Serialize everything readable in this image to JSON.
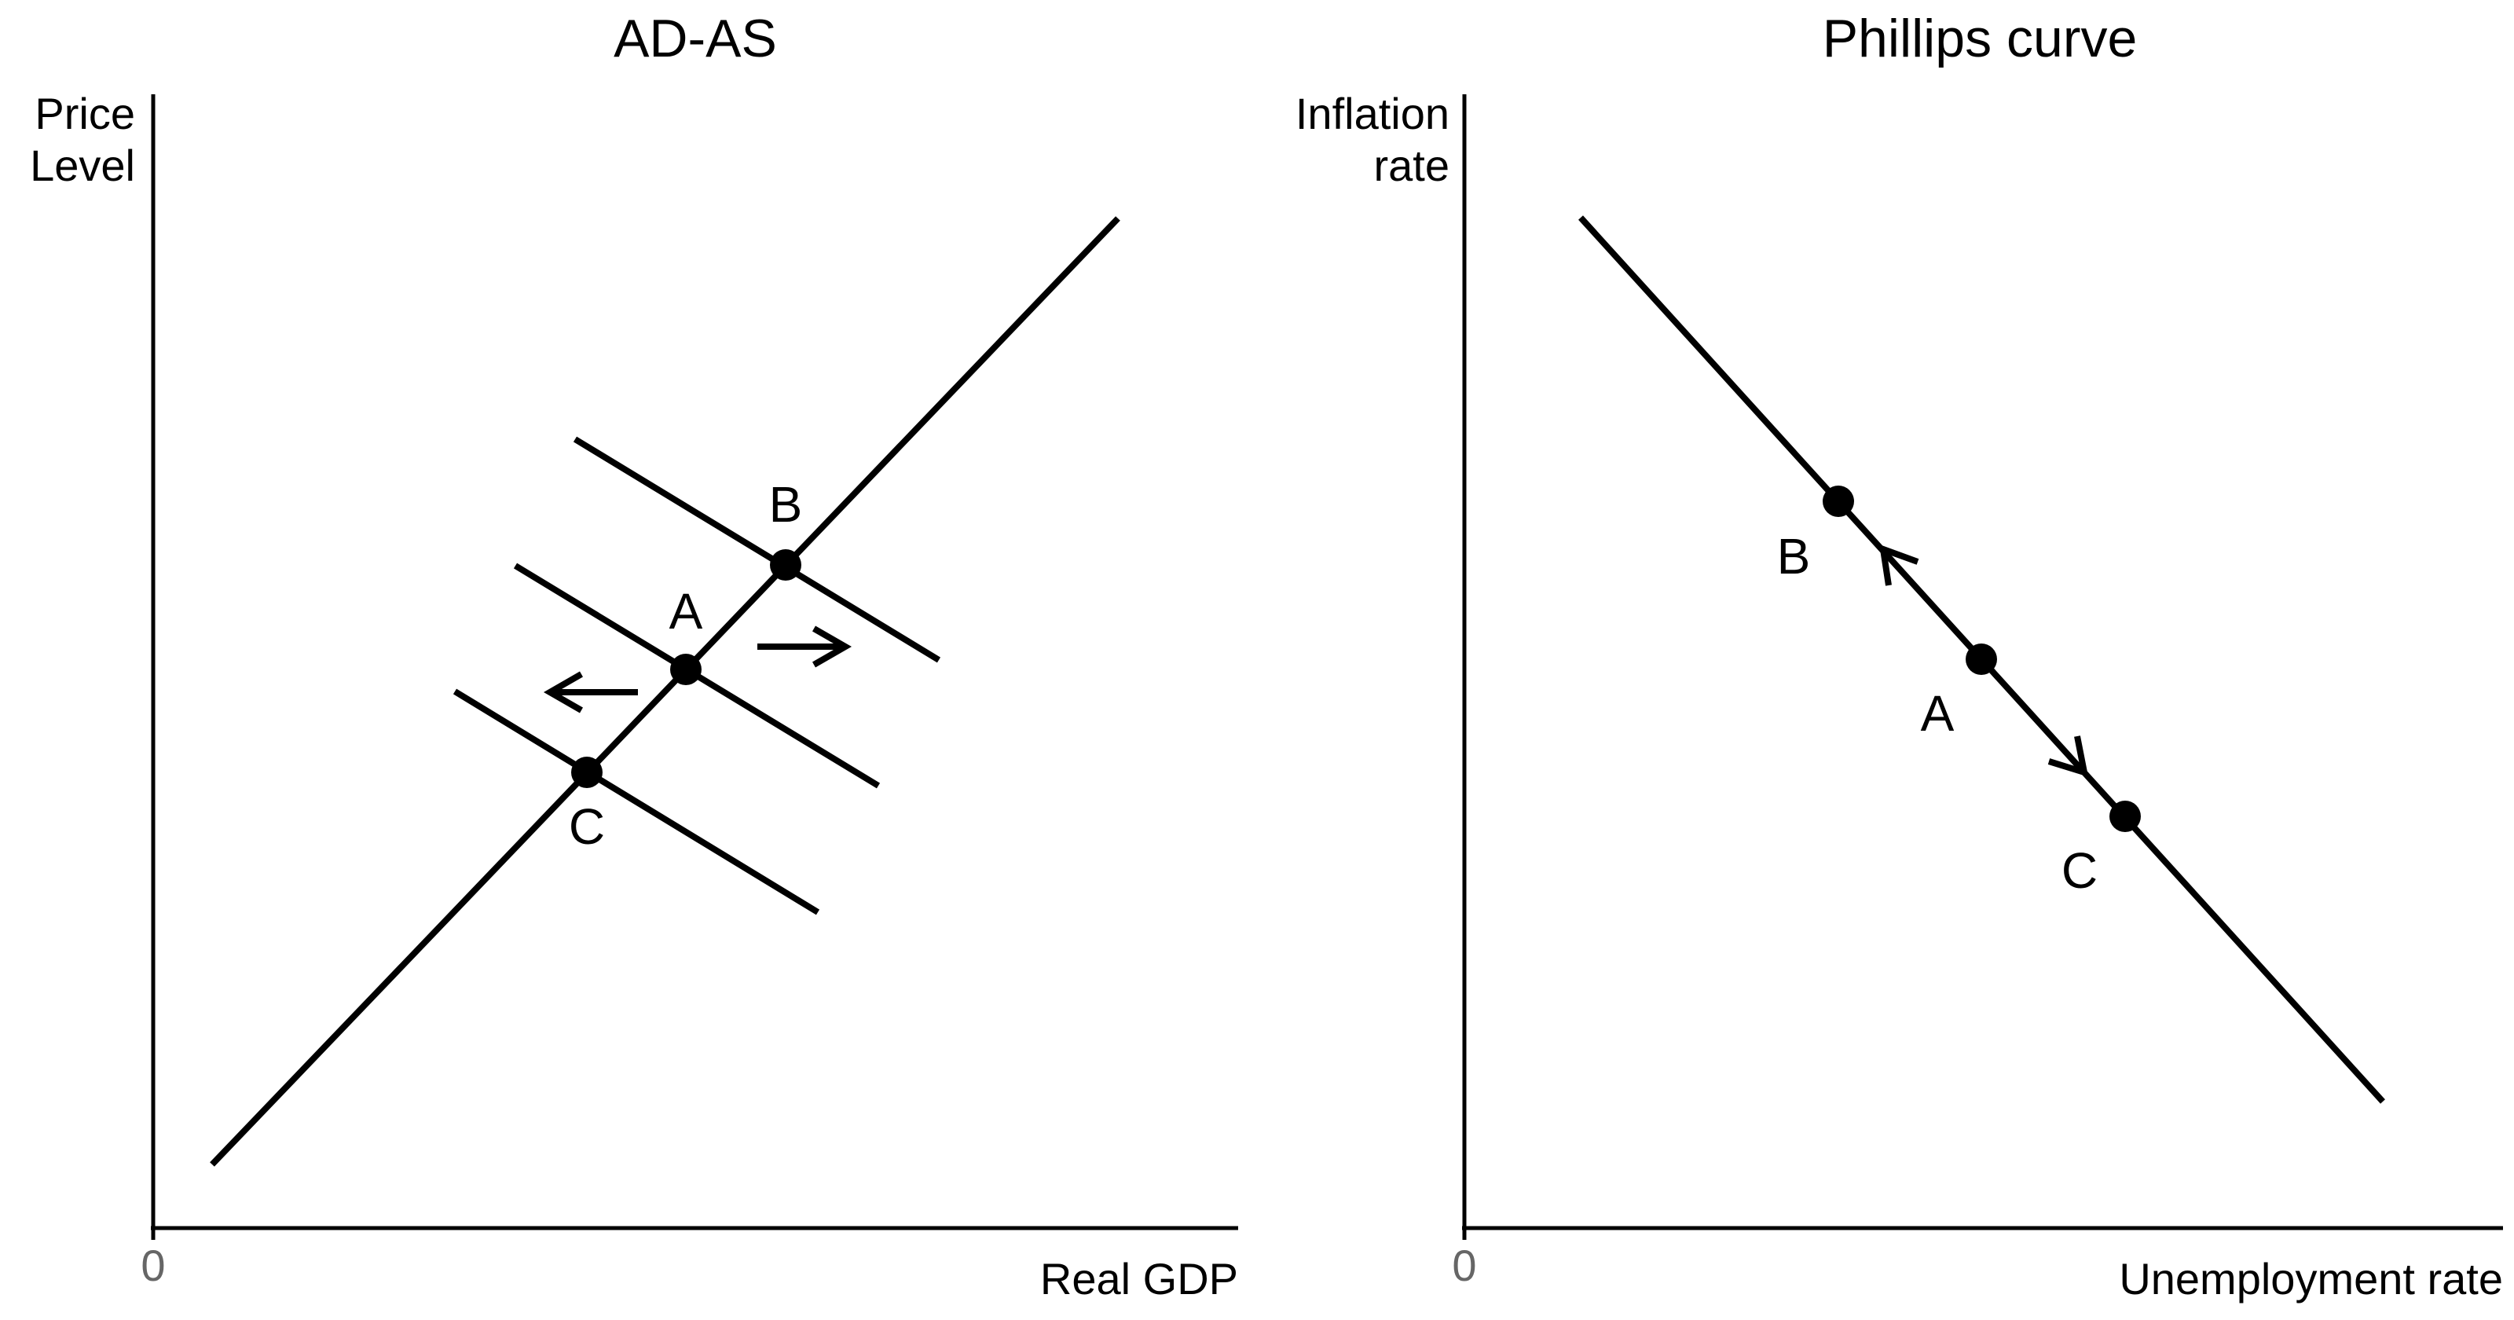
{
  "panels": [
    {
      "title": "AD-AS",
      "y_axis_label": [
        "Price",
        "Level"
      ],
      "x_axis_label": "Real GDP",
      "origin_label": "0",
      "points": [
        {
          "label": "A"
        },
        {
          "label": "B"
        },
        {
          "label": "C"
        }
      ]
    },
    {
      "title": "Phillips curve",
      "y_axis_label": [
        "Inflation",
        "rate"
      ],
      "x_axis_label": "Unemployment rate",
      "origin_label": "0",
      "points": [
        {
          "label": "A"
        },
        {
          "label": "B"
        },
        {
          "label": "C"
        }
      ]
    }
  ],
  "colors": {
    "line": "#000000",
    "origin": "#666666",
    "background": "#ffffff"
  }
}
